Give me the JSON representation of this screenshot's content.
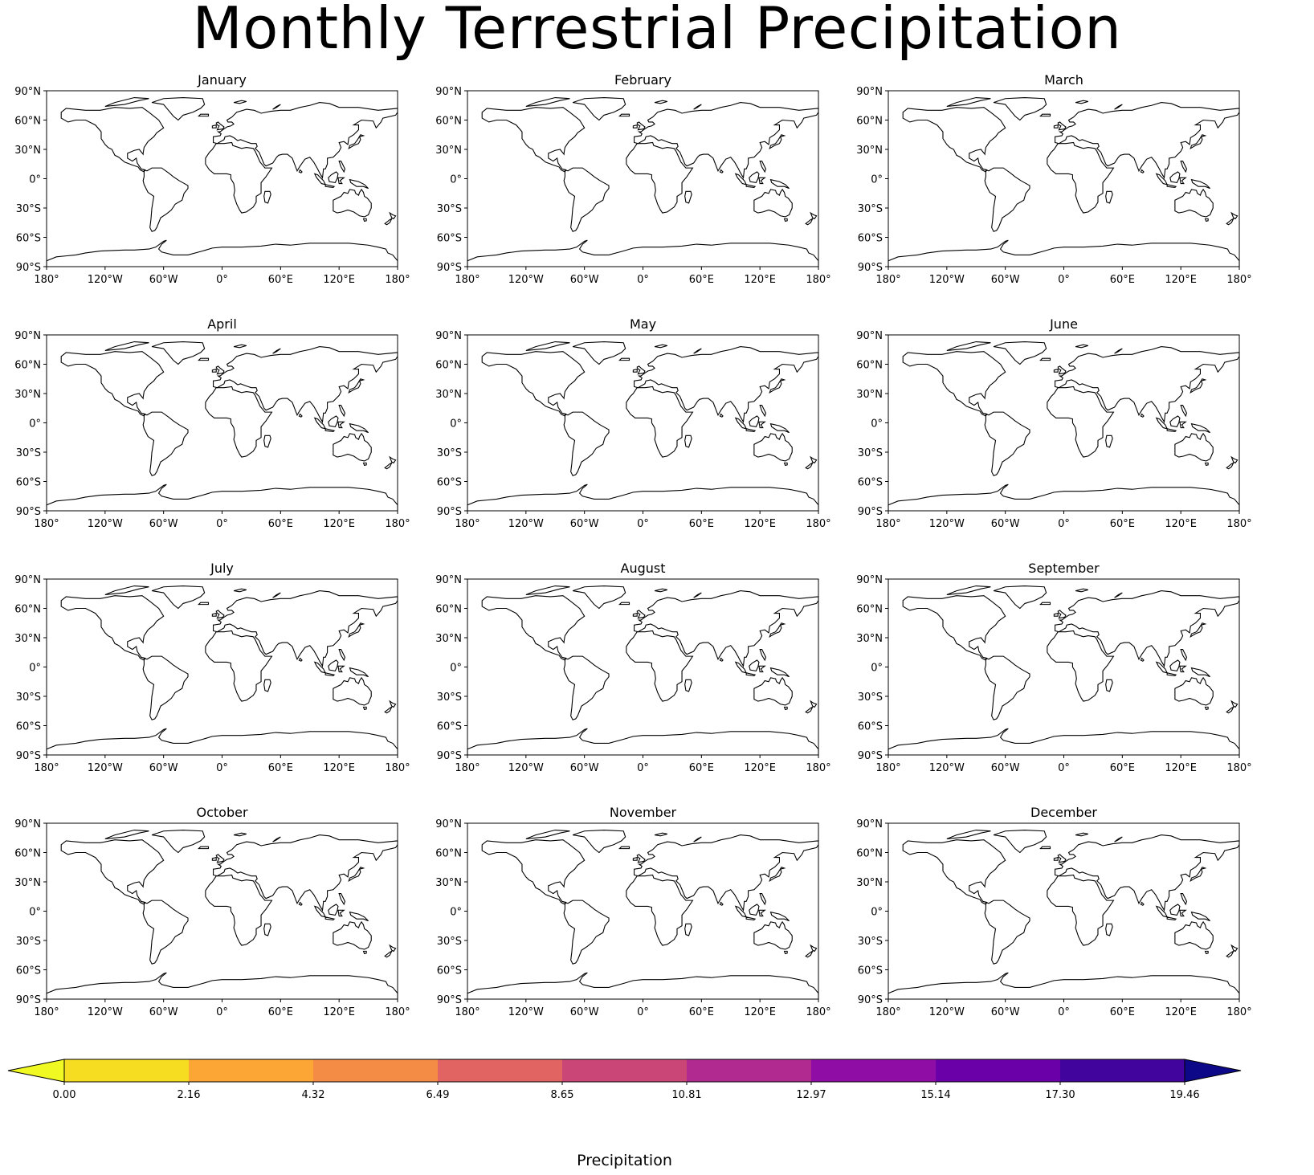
{
  "figure": {
    "title": "Monthly Terrestrial Precipitation"
  },
  "months": [
    "January",
    "February",
    "March",
    "April",
    "May",
    "June",
    "July",
    "August",
    "September",
    "October",
    "November",
    "December"
  ],
  "axes": {
    "lat_labels": [
      "90°N",
      "60°N",
      "30°N",
      "0°",
      "30°S",
      "60°S",
      "90°S"
    ],
    "lon_labels": [
      "180°",
      "120°W",
      "60°W",
      "0°",
      "60°E",
      "120°E",
      "180°"
    ],
    "lat_values": [
      90,
      60,
      30,
      0,
      -30,
      -60,
      -90
    ],
    "lon_values": [
      -180,
      -120,
      -60,
      0,
      60,
      120,
      180
    ]
  },
  "colorbar": {
    "label": "Precipitation",
    "ticks": [
      "0.00",
      "2.16",
      "4.32",
      "6.49",
      "8.65",
      "10.81",
      "12.97",
      "15.14",
      "17.30",
      "19.46"
    ],
    "colors": [
      "#f0f921",
      "#f6dd22",
      "#fca636",
      "#f58c46",
      "#e16462",
      "#c94677",
      "#b12a90",
      "#8f0da4",
      "#6a00a8",
      "#41049d",
      "#23078e",
      "#0d0887"
    ],
    "extend": "both"
  },
  "palette": {
    "land_dry": "#f6dd22",
    "ocean": "#ffffff",
    "coastline": "#000000"
  }
}
